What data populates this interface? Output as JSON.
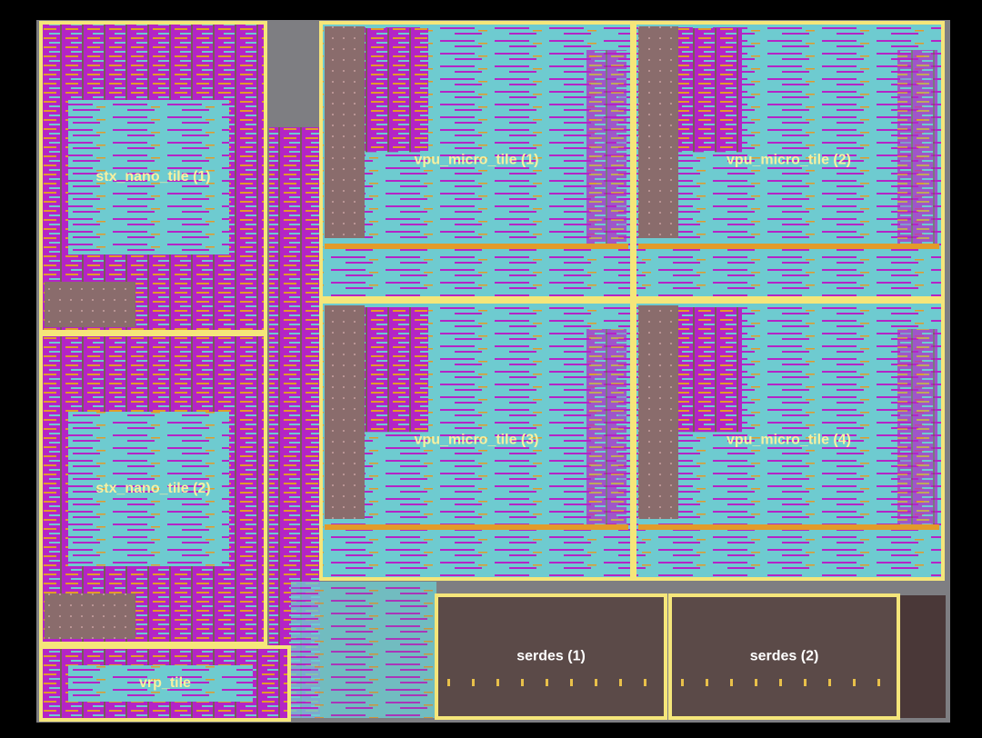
{
  "tiles": [
    {
      "label": "stx_nano_tile (1)"
    },
    {
      "label": "stx_nano_tile (2)"
    },
    {
      "label": "vrp_tile"
    },
    {
      "label": "vpu_micro_tile (1)"
    },
    {
      "label": "vpu_micro_tile (2)"
    },
    {
      "label": "vpu_micro_tile (3)"
    },
    {
      "label": "vpu_micro_tile (4)"
    },
    {
      "label": "serdes (1)"
    },
    {
      "label": "serdes (2)"
    }
  ]
}
